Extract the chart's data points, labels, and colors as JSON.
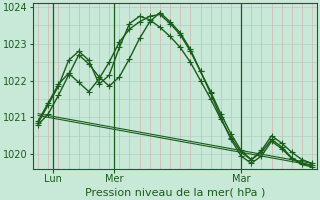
{
  "xlabel": "Pression niveau de la mer( hPa )",
  "bg_color": "#c8e8d8",
  "plot_bg_color": "#c8e8d8",
  "grid_color_v": "#d8a8a8",
  "grid_color_h": "#a8ccc0",
  "line_color": "#1a5c1a",
  "ylim": [
    1019.6,
    1024.1
  ],
  "xlim": [
    -0.5,
    27.5
  ],
  "yticks": [
    1020,
    1021,
    1022,
    1023,
    1024
  ],
  "num_vgrid": 28,
  "xtick_positions": [
    1.5,
    7.5,
    20.0
  ],
  "xtick_labels": [
    "Lun",
    "Mer",
    "Mar"
  ],
  "vlines_dark": [
    1.5,
    7.5,
    20.0
  ],
  "series_marker": [
    [
      1020.85,
      1021.35,
      1021.85,
      1022.55,
      1022.8,
      1022.55,
      1021.9,
      1022.15,
      1022.9,
      1023.55,
      1023.75,
      1023.65,
      1023.45,
      1023.2,
      1022.9,
      1022.5,
      1022.0,
      1021.5,
      1020.95,
      1020.45,
      1020.05,
      1019.85,
      1020.1,
      1020.5,
      1020.3,
      1020.05,
      1019.85,
      1019.75
    ],
    [
      1020.9,
      1021.4,
      1021.9,
      1022.2,
      1021.95,
      1021.7,
      1022.05,
      1022.5,
      1023.05,
      1023.4,
      1023.6,
      1023.75,
      1023.8,
      1023.55,
      1023.25,
      1022.8,
      1022.25,
      1021.7,
      1021.1,
      1020.55,
      1020.1,
      1019.85,
      1020.05,
      1020.4,
      1020.2,
      1019.9,
      1019.75,
      1019.7
    ],
    [
      1020.8,
      1021.1,
      1021.6,
      1022.15,
      1022.7,
      1022.45,
      1022.1,
      1021.85,
      1022.1,
      1022.6,
      1023.15,
      1023.6,
      1023.85,
      1023.6,
      1023.3,
      1022.85,
      1022.25,
      1021.65,
      1021.0,
      1020.4,
      1019.95,
      1019.75,
      1019.95,
      1020.35,
      1020.15,
      1019.88,
      1019.72,
      1019.65
    ]
  ],
  "series_line": [
    [
      1021.05,
      1021.0,
      1020.95,
      1020.9,
      1020.85,
      1020.8,
      1020.75,
      1020.7,
      1020.65,
      1020.6,
      1020.55,
      1020.5,
      1020.45,
      1020.4,
      1020.35,
      1020.3,
      1020.25,
      1020.2,
      1020.15,
      1020.1,
      1020.05,
      1020.0,
      1019.95,
      1019.9,
      1019.85,
      1019.8,
      1019.75,
      1019.7
    ],
    [
      1021.1,
      1021.05,
      1021.0,
      1020.95,
      1020.9,
      1020.85,
      1020.8,
      1020.75,
      1020.7,
      1020.65,
      1020.6,
      1020.55,
      1020.5,
      1020.45,
      1020.4,
      1020.35,
      1020.3,
      1020.25,
      1020.2,
      1020.15,
      1020.1,
      1020.05,
      1020.0,
      1019.95,
      1019.9,
      1019.85,
      1019.8,
      1019.75
    ]
  ],
  "marker": "+",
  "marker_size": 4,
  "linewidth_main": 1.0,
  "linewidth_thin": 0.8,
  "fontsize_tick": 7,
  "fontsize_xlabel": 8
}
